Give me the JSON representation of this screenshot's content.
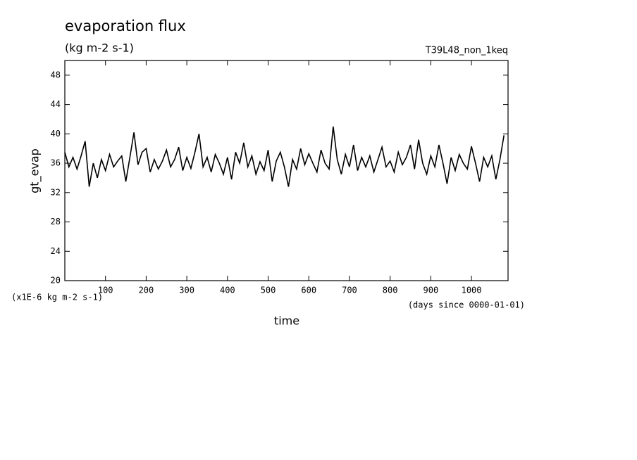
{
  "chart_data": {
    "type": "line",
    "title": "evaporation flux",
    "subtitle": "(kg m-2 s-1)",
    "run_label": "T39L48_non_1keq",
    "y_label": "gt_evap",
    "y_unit": "(x1E-6 kg m-2 s-1)",
    "x_label": "time",
    "x_unit": "(days since 0000-01-01)",
    "color": "#000000",
    "xlim": [
      0,
      1090
    ],
    "ylim": [
      20,
      50
    ],
    "xticks": [
      100,
      200,
      300,
      400,
      500,
      600,
      700,
      800,
      900,
      1000
    ],
    "yticks": [
      20,
      24,
      28,
      32,
      36,
      40,
      44,
      48
    ],
    "x": [
      0,
      10,
      20,
      30,
      40,
      50,
      60,
      70,
      80,
      90,
      100,
      110,
      120,
      130,
      140,
      150,
      160,
      170,
      180,
      190,
      200,
      210,
      220,
      230,
      240,
      250,
      260,
      270,
      280,
      290,
      300,
      310,
      320,
      330,
      340,
      350,
      360,
      370,
      380,
      390,
      400,
      410,
      420,
      430,
      440,
      450,
      460,
      470,
      480,
      490,
      500,
      510,
      520,
      530,
      540,
      550,
      560,
      570,
      580,
      590,
      600,
      610,
      620,
      630,
      640,
      650,
      660,
      670,
      680,
      690,
      700,
      710,
      720,
      730,
      740,
      750,
      760,
      770,
      780,
      790,
      800,
      810,
      820,
      830,
      840,
      850,
      860,
      870,
      880,
      890,
      900,
      910,
      920,
      930,
      940,
      950,
      960,
      970,
      980,
      990,
      1000,
      1010,
      1020,
      1030,
      1040,
      1050,
      1060,
      1070,
      1080
    ],
    "values": [
      37.5,
      35.5,
      36.8,
      35.2,
      37.0,
      39.0,
      32.8,
      36.0,
      34.0,
      36.5,
      35.0,
      37.2,
      35.5,
      36.3,
      37.0,
      33.5,
      36.8,
      40.2,
      35.8,
      37.5,
      38.0,
      34.8,
      36.5,
      35.2,
      36.3,
      37.8,
      35.5,
      36.5,
      38.2,
      35.0,
      36.8,
      35.3,
      37.5,
      40.0,
      35.5,
      36.8,
      34.8,
      37.2,
      36.0,
      34.5,
      36.8,
      33.8,
      37.5,
      36.0,
      38.8,
      35.5,
      37.0,
      34.5,
      36.2,
      35.0,
      37.8,
      33.5,
      36.3,
      37.5,
      35.5,
      32.8,
      36.5,
      35.2,
      38.0,
      35.8,
      37.3,
      36.0,
      34.8,
      37.8,
      36.0,
      35.2,
      41.0,
      36.5,
      34.5,
      37.2,
      35.5,
      38.5,
      35.0,
      36.8,
      35.5,
      37.0,
      34.8,
      36.5,
      38.2,
      35.5,
      36.3,
      34.8,
      37.5,
      35.8,
      36.8,
      38.5,
      35.2,
      39.2,
      36.0,
      34.5,
      37.0,
      35.5,
      38.5,
      36.0,
      33.2,
      36.8,
      35.0,
      37.2,
      36.0,
      35.2,
      38.3,
      36.0,
      33.5,
      36.8,
      35.5,
      37.0,
      33.8,
      36.5,
      39.8
    ]
  }
}
